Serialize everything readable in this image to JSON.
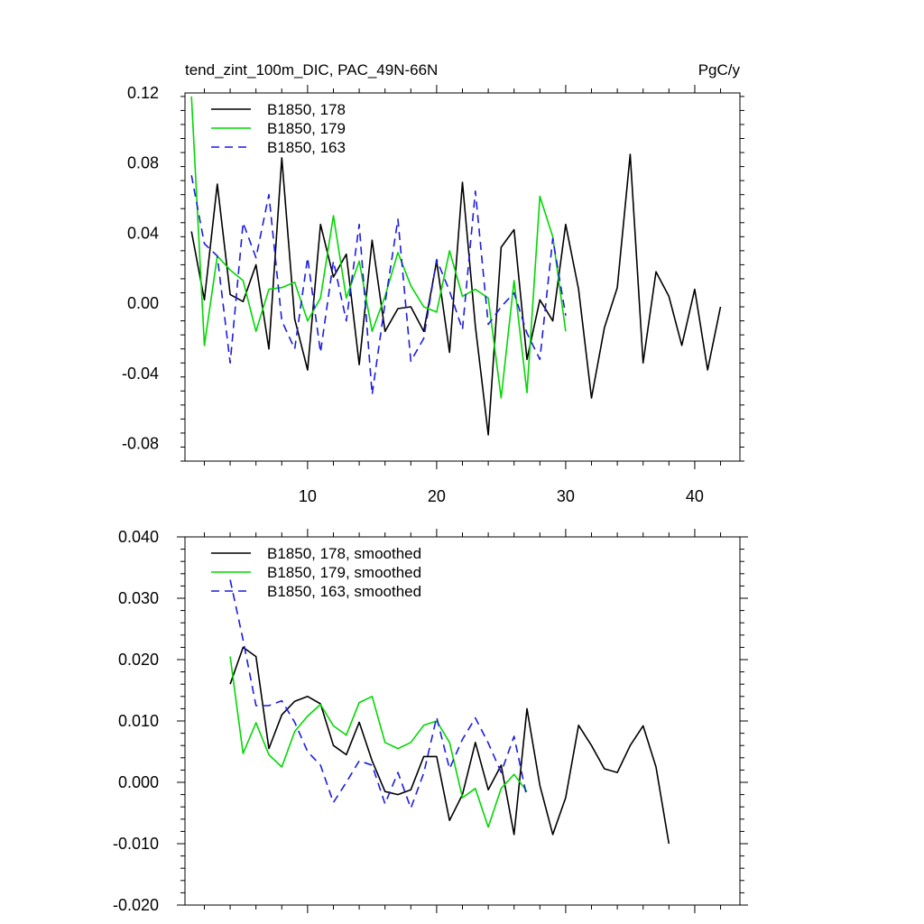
{
  "header": {
    "left_title": "tend_zint_100m_DIC, PAC_49N-66N",
    "right_title": "PgC/y"
  },
  "chart_data": [
    {
      "type": "line",
      "title": "tend_zint_100m_DIC, PAC_49N-66N",
      "units": "PgC/y",
      "xlim": [
        0.5,
        43.5
      ],
      "ylim": [
        -0.09,
        0.12
      ],
      "xticks": [
        10,
        20,
        30,
        40
      ],
      "xtick_labels": [
        "10",
        "20",
        "30",
        "40"
      ],
      "yticks": [
        0.12,
        0.08,
        0.04,
        0.0,
        -0.04,
        -0.08
      ],
      "ytick_labels": [
        "0.12",
        "0.08",
        "0.04",
        "0.00",
        "-0.04",
        "-0.08"
      ],
      "legend_position": "top-left",
      "series": [
        {
          "name": "B1850, 178",
          "color": "#000000",
          "dash": "solid",
          "x_start": 1,
          "values": [
            0.041,
            0.002,
            0.068,
            0.005,
            0.001,
            0.022,
            -0.026,
            0.083,
            -0.009,
            -0.038,
            0.045,
            0.015,
            0.028,
            -0.035,
            0.036,
            -0.016,
            -0.003,
            -0.002,
            -0.016,
            0.024,
            -0.028,
            0.069,
            -0.013,
            -0.075,
            0.032,
            0.042,
            -0.032,
            0.002,
            -0.01,
            0.045,
            0.008,
            -0.054,
            -0.014,
            0.009,
            0.085,
            -0.034,
            0.018,
            0.004,
            -0.024,
            0.008,
            -0.038,
            -0.002
          ]
        },
        {
          "name": "B1850, 179",
          "color": "#00d800",
          "dash": "solid",
          "x_start": 1,
          "values": [
            0.118,
            -0.024,
            0.027,
            0.019,
            0.013,
            -0.016,
            0.008,
            0.009,
            0.012,
            -0.01,
            0.003,
            0.05,
            0.003,
            0.024,
            -0.016,
            0.004,
            0.029,
            0.01,
            -0.002,
            -0.005,
            0.03,
            0.004,
            0.008,
            0.003,
            -0.054,
            0.013,
            -0.051,
            0.061,
            0.038,
            -0.016
          ]
        },
        {
          "name": "B1850, 163",
          "color": "#1c1ce0",
          "dash": "dashed",
          "x_start": 1,
          "values": [
            0.073,
            0.034,
            0.027,
            -0.034,
            0.046,
            0.026,
            0.062,
            -0.01,
            -0.026,
            0.026,
            -0.028,
            0.024,
            -0.01,
            0.045,
            -0.052,
            0.0,
            0.048,
            -0.033,
            -0.02,
            0.025,
            0.007,
            -0.015,
            0.064,
            -0.012,
            -0.002,
            0.006,
            -0.017,
            -0.032,
            0.037,
            -0.007
          ]
        }
      ]
    },
    {
      "type": "line",
      "xlim": [
        0.5,
        43.5
      ],
      "ylim": [
        -0.02,
        0.04
      ],
      "xticks": [
        10,
        20,
        30,
        40
      ],
      "yticks": [
        0.04,
        0.03,
        0.02,
        0.01,
        0.0,
        -0.01,
        -0.02
      ],
      "ytick_labels": [
        "0.040",
        "0.030",
        "0.020",
        "0.010",
        "0.000",
        "-0.010",
        "-0.020"
      ],
      "legend_position": "top-left",
      "series": [
        {
          "name": "B1850, 178, smoothed",
          "color": "#000000",
          "dash": "solid",
          "x_start": 4,
          "values": [
            0.016,
            0.022,
            0.0205,
            0.0055,
            0.011,
            0.0132,
            0.014,
            0.0128,
            0.006,
            0.0045,
            0.0098,
            0.0035,
            -0.0015,
            -0.002,
            -0.0012,
            0.0042,
            0.0042,
            -0.0062,
            -0.002,
            0.0065,
            -0.0012,
            0.0028,
            -0.0085,
            0.012,
            -0.0005,
            -0.0085,
            -0.0025,
            0.0093,
            0.006,
            0.0022,
            0.0016,
            0.006,
            0.0092,
            0.0025,
            -0.01
          ]
        },
        {
          "name": "B1850, 179, smoothed",
          "color": "#00d800",
          "dash": "solid",
          "x_start": 4,
          "values": [
            0.0205,
            0.0047,
            0.0097,
            0.0045,
            0.0025,
            0.0083,
            0.0108,
            0.0127,
            0.0092,
            0.0077,
            0.013,
            0.014,
            0.0065,
            0.0055,
            0.0065,
            0.0093,
            0.01,
            0.0065,
            -0.0025,
            -0.001,
            -0.0073,
            -0.001,
            0.0013,
            -0.0015
          ]
        },
        {
          "name": "B1850, 163, smoothed",
          "color": "#1c1ce0",
          "dash": "dashed",
          "x_start": 4,
          "values": [
            0.033,
            0.0232,
            0.0125,
            0.0125,
            0.0133,
            0.0098,
            0.005,
            0.0028,
            -0.0033,
            0.0,
            0.0035,
            0.0028,
            -0.0035,
            0.0016,
            -0.0042,
            0.0015,
            0.0106,
            0.0022,
            0.007,
            0.0105,
            0.0064,
            0.0016,
            0.0075,
            -0.0025
          ]
        }
      ]
    }
  ]
}
